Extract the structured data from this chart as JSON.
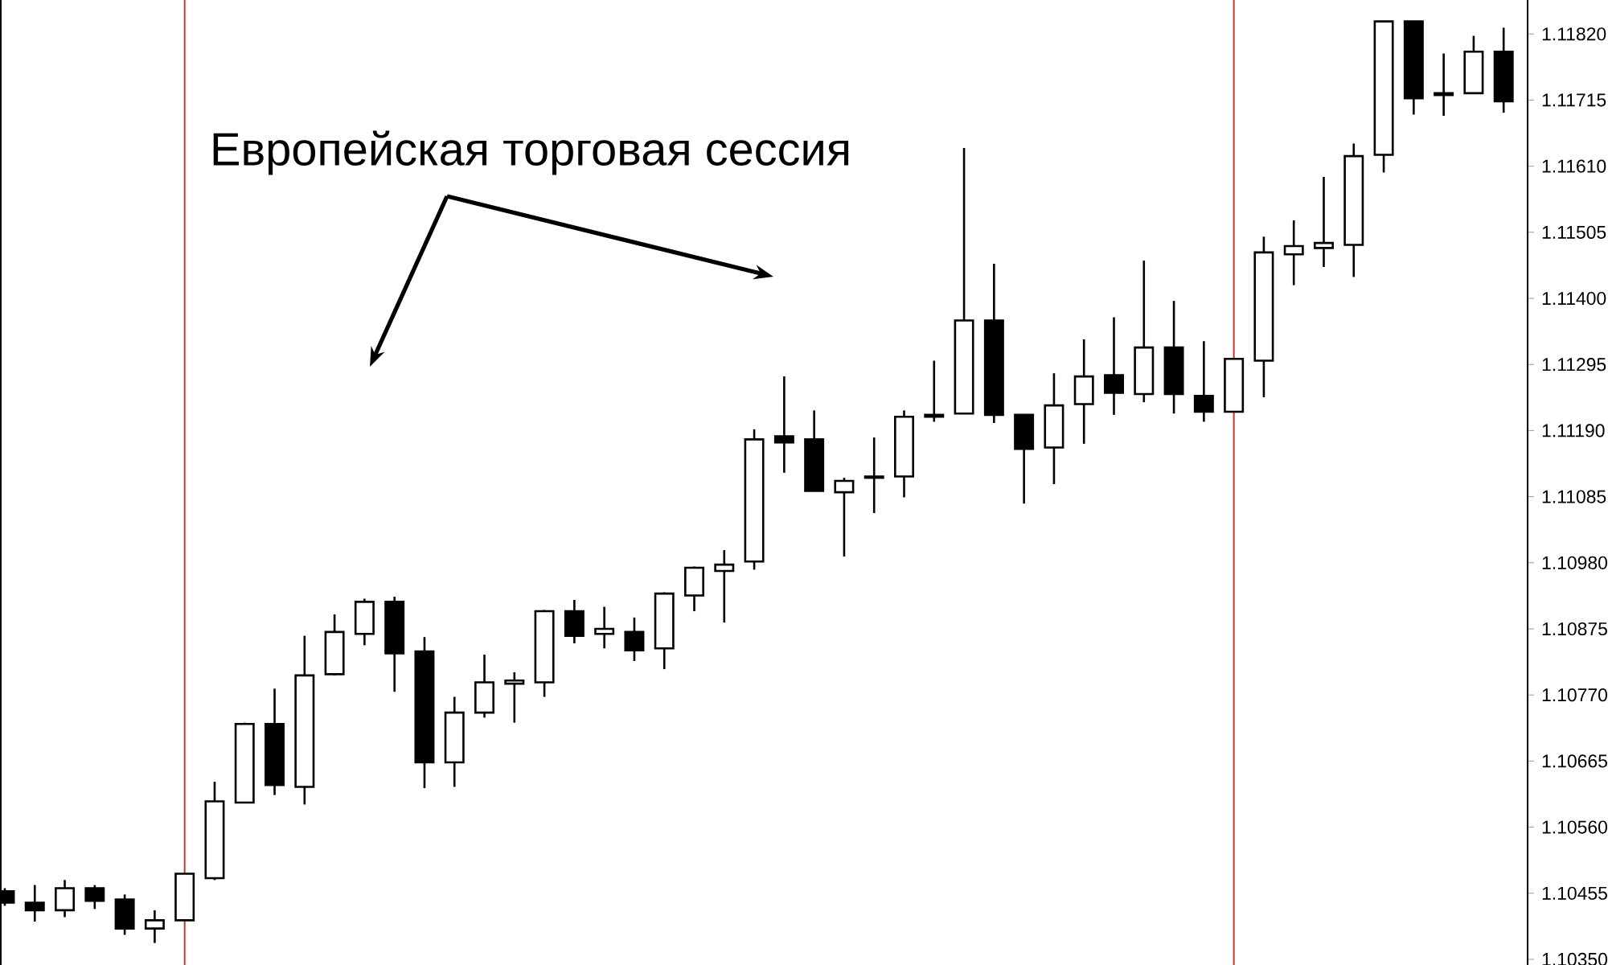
{
  "chart_data": {
    "type": "candlestick",
    "categories": [
      null,
      null,
      null,
      null,
      null,
      null,
      null,
      null,
      null,
      null,
      null,
      null,
      null,
      null,
      null,
      null,
      null,
      null,
      null,
      null,
      null,
      null,
      null,
      null,
      null,
      null,
      null,
      null,
      null,
      null,
      null,
      null,
      null,
      null,
      null,
      null,
      null,
      null,
      null,
      null,
      null,
      null,
      null,
      null,
      null,
      null,
      null,
      null,
      null,
      null,
      null
    ],
    "ohlc": [
      [
        1.10458,
        1.10463,
        1.10435,
        1.1044
      ],
      [
        1.1044,
        1.10468,
        1.1041,
        1.10428
      ],
      [
        1.10428,
        1.10476,
        1.10417,
        1.10463
      ],
      [
        1.10463,
        1.10468,
        1.1043,
        1.10443
      ],
      [
        1.10445,
        1.10453,
        1.10389,
        1.10399
      ],
      [
        1.10399,
        1.10428,
        1.10376,
        1.10412
      ],
      [
        1.10412,
        1.10486,
        1.10412,
        1.10486
      ],
      [
        1.10479,
        1.10632,
        1.10476,
        1.10601
      ],
      [
        1.10599,
        1.10726,
        1.10599,
        1.10724
      ],
      [
        1.10724,
        1.1078,
        1.10611,
        1.10627
      ],
      [
        1.10624,
        1.10864,
        1.10596,
        1.10801
      ],
      [
        1.10803,
        1.10898,
        1.10801,
        1.1087
      ],
      [
        1.10867,
        1.10923,
        1.10849,
        1.10918
      ],
      [
        1.10918,
        1.10926,
        1.10775,
        1.10836
      ],
      [
        1.10839,
        1.10862,
        1.10622,
        1.10663
      ],
      [
        1.10663,
        1.10767,
        1.10624,
        1.10742
      ],
      [
        1.10742,
        1.10834,
        1.10734,
        1.1079
      ],
      [
        1.10788,
        1.10806,
        1.10726,
        1.10793
      ],
      [
        1.1079,
        1.10905,
        1.10767,
        1.10903
      ],
      [
        1.10903,
        1.10921,
        1.10852,
        1.10864
      ],
      [
        1.10867,
        1.1091,
        1.10844,
        1.10875
      ],
      [
        1.1087,
        1.10893,
        1.10824,
        1.10841
      ],
      [
        1.10844,
        1.10933,
        1.10811,
        1.10931
      ],
      [
        1.10928,
        1.10974,
        1.10903,
        1.10972
      ],
      [
        1.10967,
        1.11,
        1.10885,
        1.10977
      ],
      [
        1.10982,
        1.11192,
        1.10969,
        1.11176
      ],
      [
        1.11181,
        1.11276,
        1.11123,
        1.11171
      ],
      [
        1.11176,
        1.11222,
        1.11094,
        1.11094
      ],
      [
        1.11092,
        1.11115,
        1.1099,
        1.1111
      ],
      [
        1.11117,
        1.11179,
        1.11059,
        1.11115
      ],
      [
        1.11117,
        1.11222,
        1.11084,
        1.11212
      ],
      [
        1.11212,
        1.11301,
        1.11204,
        1.11215
      ],
      [
        1.11217,
        1.11639,
        1.11217,
        1.11365
      ],
      [
        1.11365,
        1.11455,
        1.11202,
        1.11215
      ],
      [
        1.11215,
        1.11215,
        1.11074,
        1.11161
      ],
      [
        1.11163,
        1.11281,
        1.11105,
        1.1123
      ],
      [
        1.11232,
        1.11335,
        1.11169,
        1.11276
      ],
      [
        1.11278,
        1.1137,
        1.11215,
        1.1125
      ],
      [
        1.11248,
        1.1146,
        1.11235,
        1.11322
      ],
      [
        1.11322,
        1.11396,
        1.11217,
        1.11248
      ],
      [
        1.11245,
        1.11332,
        1.11204,
        1.1122
      ],
      [
        1.1122,
        1.11304,
        1.1122,
        1.11304
      ],
      [
        1.11301,
        1.11498,
        1.11243,
        1.11473
      ],
      [
        1.1147,
        1.11524,
        1.11421,
        1.11483
      ],
      [
        1.1148,
        1.11593,
        1.1145,
        1.11488
      ],
      [
        1.11485,
        1.11646,
        1.11434,
        1.11626
      ],
      [
        1.11628,
        1.1184,
        1.116,
        1.1184
      ],
      [
        1.1184,
        1.1184,
        1.11692,
        1.11718
      ],
      [
        1.11723,
        1.11789,
        1.1169,
        1.11726
      ],
      [
        1.11726,
        1.11817,
        1.11726,
        1.11792
      ],
      [
        1.11792,
        1.1183,
        1.11695,
        1.11713
      ]
    ],
    "ylim": [
      1.10341,
      1.11874
    ],
    "yticks": [
      {
        "value": 1.1035,
        "label": "1.10350"
      },
      1.10455,
      {
        "value": 1.1056,
        "label": "1.10560"
      },
      1.10665,
      {
        "value": 1.1077,
        "label": "1.10770"
      },
      1.10875,
      {
        "value": 1.1098,
        "label": "1.10980"
      },
      1.11085,
      {
        "value": 1.1119,
        "label": "1.11190"
      },
      1.11295,
      {
        "value": 1.114,
        "label": "1.11400"
      },
      1.11505,
      {
        "value": 1.1161,
        "label": "1.11610"
      },
      1.11715,
      {
        "value": 1.1182,
        "label": "1.11820"
      }
    ],
    "annotations": [
      "Европейская торговая сессия"
    ],
    "grid": false
  }
}
